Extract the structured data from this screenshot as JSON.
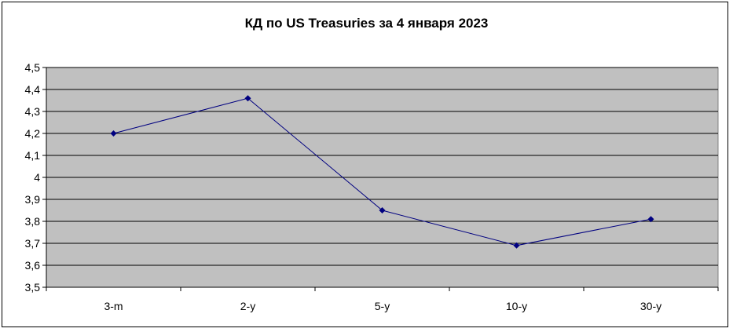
{
  "chart_data": {
    "type": "line",
    "title": "КД по US Treasuries за 4 января 2023",
    "categories": [
      "3-m",
      "2-y",
      "5-y",
      "10-y",
      "30-y"
    ],
    "series": [
      {
        "values": [
          4.2,
          4.36,
          3.85,
          3.69,
          3.81
        ]
      }
    ],
    "ylim": [
      3.5,
      4.5
    ],
    "y_tick_step": 0.1,
    "y_tick_labels": [
      "3,5",
      "3,6",
      "3,7",
      "3,8",
      "3,9",
      "4",
      "4,1",
      "4,2",
      "4,3",
      "4,4",
      "4,5"
    ],
    "grid": true,
    "legend": "none"
  },
  "colors": {
    "plot_background": "#c0c0c0",
    "gridline": "#000000",
    "series_line": "#000080",
    "marker": "#000080"
  }
}
